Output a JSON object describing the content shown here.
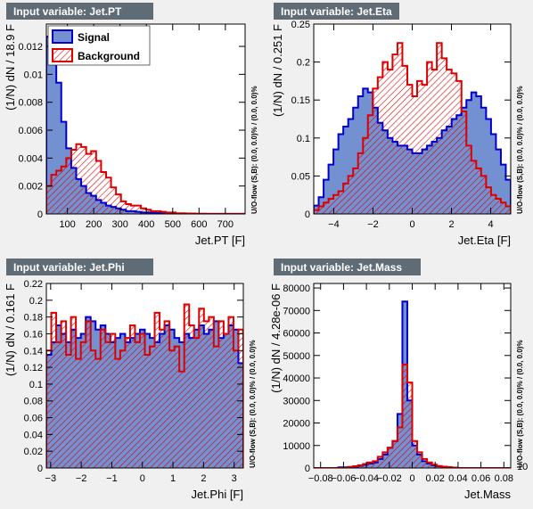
{
  "colors": {
    "background": "#f0f0f0",
    "title_box": "#5f6b75",
    "signal_fill": "#7390d0",
    "signal_line": "#0000cc",
    "background_line": "#dd0000"
  },
  "legend": {
    "signal": "Signal",
    "background": "Background"
  },
  "chart_data": [
    {
      "type": "histogram",
      "title": "Input variable: Jet.PT",
      "xlabel": "Jet.PT  [F]",
      "ylabel": "(1/N) dN / 18.9 F",
      "overflow_label": "U/O-flow (S,B): (0.0, 0.0)% / (0.0, 0.0)%",
      "xlim": [
        20,
        775
      ],
      "ylim": [
        0,
        0.0136
      ],
      "xticks": [
        100,
        200,
        300,
        400,
        500,
        600,
        700
      ],
      "xtick_labels": [
        "100",
        "200",
        "300",
        "400",
        "500",
        "600",
        "700"
      ],
      "yticks": [
        0,
        0.002,
        0.004,
        0.006,
        0.008,
        0.01,
        0.012
      ],
      "ytick_labels": [
        "0",
        "0.002",
        "0.004",
        "0.006",
        "0.008",
        "0.01",
        "0.012"
      ],
      "legend_position": "top-left",
      "x0": 20,
      "binw": 18.9,
      "series": [
        {
          "name": "Signal",
          "values": [
            0.0127,
            0.0122,
            0.0094,
            0.0066,
            0.0047,
            0.0033,
            0.0025,
            0.002,
            0.0015,
            0.0013,
            0.001,
            0.0008,
            0.0006,
            0.0005,
            0.0004,
            0.0003,
            0.0002,
            0.0002,
            0.00015,
            0.0001,
            0.0001,
            8e-05,
            6e-05,
            5e-05,
            4e-05,
            3e-05,
            3e-05,
            2e-05,
            2e-05,
            1e-05,
            1e-05,
            1e-05,
            1e-05,
            1e-05,
            1e-05,
            1e-05,
            1e-05,
            1e-05,
            1e-05,
            1e-05
          ]
        },
        {
          "name": "Background",
          "values": [
            0.002,
            0.0028,
            0.0031,
            0.0034,
            0.004,
            0.0046,
            0.005,
            0.0048,
            0.0043,
            0.0045,
            0.0038,
            0.003,
            0.0026,
            0.0019,
            0.0014,
            0.0009,
            0.0007,
            0.0006,
            0.0006,
            0.0004,
            0.0003,
            0.0002,
            0.0002,
            0.00015,
            0.0001,
            0.0001,
            5e-05,
            5e-05,
            3e-05,
            3e-05,
            2e-05,
            2e-05,
            1e-05,
            1e-05,
            1e-05,
            1e-05,
            1e-05,
            1e-05,
            1e-05,
            1e-05
          ]
        }
      ]
    },
    {
      "type": "histogram",
      "title": "Input variable: Jet.Eta",
      "xlabel": "Jet.Eta  [F]",
      "ylabel": "(1/N) dN / 0.251 F",
      "overflow_label": "U/O-flow (S,B): (0.0, 0.0)% / (0.0, 0.0)%",
      "xlim": [
        -5.02,
        5.02
      ],
      "ylim": [
        0,
        0.25
      ],
      "xticks": [
        -4,
        -2,
        0,
        2,
        4
      ],
      "xtick_labels": [
        "−4",
        "−2",
        "0",
        "2",
        "4"
      ],
      "yticks": [
        0,
        0.05,
        0.1,
        0.15,
        0.2,
        0.25
      ],
      "ytick_labels": [
        "0",
        "0.05",
        "0.1",
        "0.15",
        "0.2",
        "0.25"
      ],
      "x0": -5.02,
      "binw": 0.251,
      "series": [
        {
          "name": "Signal",
          "values": [
            0.011,
            0.022,
            0.045,
            0.065,
            0.085,
            0.105,
            0.115,
            0.125,
            0.14,
            0.155,
            0.165,
            0.16,
            0.14,
            0.12,
            0.11,
            0.1,
            0.095,
            0.09,
            0.09,
            0.085,
            0.08,
            0.08,
            0.085,
            0.09,
            0.095,
            0.1,
            0.11,
            0.115,
            0.125,
            0.13,
            0.14,
            0.15,
            0.16,
            0.155,
            0.14,
            0.125,
            0.105,
            0.085,
            0.065,
            0.045
          ]
        },
        {
          "name": "Background",
          "values": [
            0.005,
            0.01,
            0.015,
            0.02,
            0.025,
            0.03,
            0.04,
            0.05,
            0.06,
            0.08,
            0.1,
            0.13,
            0.165,
            0.18,
            0.2,
            0.19,
            0.21,
            0.225,
            0.195,
            0.17,
            0.155,
            0.175,
            0.17,
            0.2,
            0.19,
            0.225,
            0.205,
            0.19,
            0.185,
            0.175,
            0.135,
            0.09,
            0.07,
            0.06,
            0.05,
            0.035,
            0.025,
            0.02,
            0.015,
            0.01
          ]
        }
      ]
    },
    {
      "type": "histogram",
      "title": "Input variable: Jet.Phi",
      "xlabel": "Jet.Phi  [F]",
      "ylabel": "(1/N) dN / 0.161 F",
      "overflow_label": "U/O-flow (S,B): (0.0, 0.0)% / (0.0, 0.0)%",
      "xlim": [
        -3.14,
        3.3
      ],
      "ylim": [
        0,
        0.22
      ],
      "xticks": [
        -3,
        -2,
        -1,
        0,
        1,
        2,
        3
      ],
      "xtick_labels": [
        "−3",
        "−2",
        "−1",
        "0",
        "1",
        "2",
        "3"
      ],
      "yticks": [
        0,
        0.02,
        0.04,
        0.06,
        0.08,
        0.1,
        0.12,
        0.14,
        0.16,
        0.18,
        0.2,
        0.22
      ],
      "ytick_labels": [
        "0",
        "0.02",
        "0.04",
        "0.06",
        "0.08",
        "0.1",
        "0.12",
        "0.14",
        "0.16",
        "0.18",
        "0.2",
        "0.22"
      ],
      "x0": -3.14,
      "binw": 0.161,
      "series": [
        {
          "name": "Signal",
          "values": [
            0.135,
            0.15,
            0.17,
            0.16,
            0.15,
            0.165,
            0.155,
            0.16,
            0.18,
            0.175,
            0.165,
            0.17,
            0.16,
            0.15,
            0.155,
            0.16,
            0.15,
            0.155,
            0.16,
            0.165,
            0.16,
            0.155,
            0.15,
            0.16,
            0.17,
            0.165,
            0.155,
            0.15,
            0.16,
            0.155,
            0.165,
            0.17,
            0.16,
            0.165,
            0.175,
            0.155,
            0.16,
            0.17,
            0.165,
            0.125
          ]
        },
        {
          "name": "Background",
          "values": [
            0.14,
            0.185,
            0.15,
            0.175,
            0.135,
            0.18,
            0.13,
            0.15,
            0.175,
            0.14,
            0.13,
            0.165,
            0.15,
            0.16,
            0.13,
            0.14,
            0.155,
            0.17,
            0.15,
            0.16,
            0.135,
            0.145,
            0.185,
            0.165,
            0.175,
            0.14,
            0.145,
            0.115,
            0.195,
            0.17,
            0.155,
            0.19,
            0.175,
            0.18,
            0.145,
            0.175,
            0.16,
            0.18,
            0.14,
            0.165
          ]
        }
      ]
    },
    {
      "type": "histogram",
      "title": "Input variable: Jet.Mass",
      "xlabel": "Jet.Mass",
      "ylabel": "(1/N) dN / 4.28e-06 F",
      "overflow_label": "U/O-flow (S,B): (0.0, 0.0)% / (0.0, 0.0)%",
      "axis_multiplier": "10",
      "xlim": [
        -0.086,
        0.086
      ],
      "ylim": [
        0,
        82000
      ],
      "xticks": [
        -0.08,
        -0.06,
        -0.04,
        -0.02,
        0,
        0.02,
        0.04,
        0.06,
        0.08
      ],
      "xtick_labels": [
        "−0.08",
        "−0.06",
        "−0.04",
        "−0.02",
        "0",
        "0.02",
        "0.04",
        "0.06",
        "0.08"
      ],
      "yticks": [
        0,
        10000,
        20000,
        30000,
        40000,
        50000,
        60000,
        70000,
        80000
      ],
      "ytick_labels": [
        "0",
        "10000",
        "20000",
        "30000",
        "40000",
        "50000",
        "60000",
        "70000",
        "80000"
      ],
      "x0": -0.086,
      "binw": 0.0043,
      "series": [
        {
          "name": "Signal",
          "values": [
            0,
            0,
            0,
            0,
            0,
            300,
            300,
            400,
            600,
            1000,
            1500,
            2000,
            2500,
            4000,
            6000,
            9000,
            12000,
            24000,
            74000,
            30000,
            10000,
            6000,
            3000,
            2000,
            1200,
            800,
            500,
            300,
            200,
            0,
            0,
            0,
            0,
            0,
            0,
            0,
            0,
            0,
            0,
            0
          ]
        },
        {
          "name": "Background",
          "values": [
            0,
            0,
            0,
            0,
            0,
            0,
            0,
            500,
            800,
            1200,
            1800,
            2500,
            3000,
            5000,
            7000,
            9000,
            12000,
            18000,
            46000,
            38000,
            12000,
            7000,
            4000,
            2500,
            1500,
            900,
            600,
            400,
            200,
            0,
            0,
            0,
            0,
            0,
            0,
            0,
            0,
            0,
            0,
            0
          ]
        }
      ]
    }
  ]
}
